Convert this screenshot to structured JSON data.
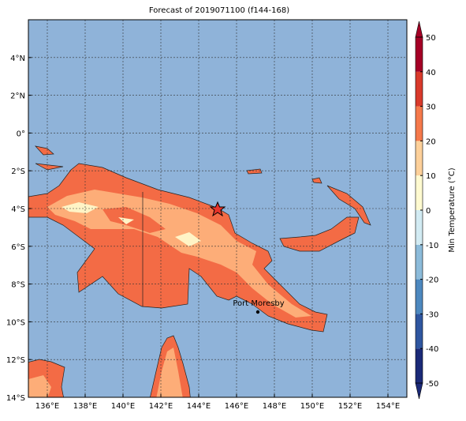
{
  "map": {
    "title": "Forecast of 2019071100 (f144-168)",
    "xlim": [
      135,
      155
    ],
    "ylim": [
      -14,
      6
    ],
    "xticks": [
      {
        "value": 136,
        "label": "136°E"
      },
      {
        "value": 138,
        "label": "138°E"
      },
      {
        "value": 140,
        "label": "140°E"
      },
      {
        "value": 142,
        "label": "142°E"
      },
      {
        "value": 144,
        "label": "144°E"
      },
      {
        "value": 146,
        "label": "146°E"
      },
      {
        "value": 148,
        "label": "148°E"
      },
      {
        "value": 150,
        "label": "150°E"
      },
      {
        "value": 152,
        "label": "152°E"
      },
      {
        "value": 154,
        "label": "154°E"
      }
    ],
    "yticks": [
      {
        "value": 4,
        "label": "4°N"
      },
      {
        "value": 2,
        "label": "2°N"
      },
      {
        "value": 0,
        "label": "0°"
      },
      {
        "value": -2,
        "label": "2°S"
      },
      {
        "value": -4,
        "label": "4°S"
      },
      {
        "value": -6,
        "label": "6°S"
      },
      {
        "value": -8,
        "label": "8°S"
      },
      {
        "value": -10,
        "label": "10°S"
      },
      {
        "value": -12,
        "label": "12°S"
      },
      {
        "value": -14,
        "label": "14°S"
      }
    ],
    "colorbar": {
      "label": "Min Temperature (°C)",
      "lim": [
        -50,
        50
      ],
      "ticks": [
        -50,
        -40,
        -30,
        -20,
        -10,
        0,
        10,
        20,
        30,
        40,
        50
      ],
      "colors": [
        "#1b2a78",
        "#2f56a0",
        "#4d88bf",
        "#8cbbda",
        "#d2ebf3",
        "#fffad0",
        "#fdd09a",
        "#f5794b",
        "#d93a2b",
        "#a50026"
      ]
    },
    "place": "Port Moresby"
  }
}
